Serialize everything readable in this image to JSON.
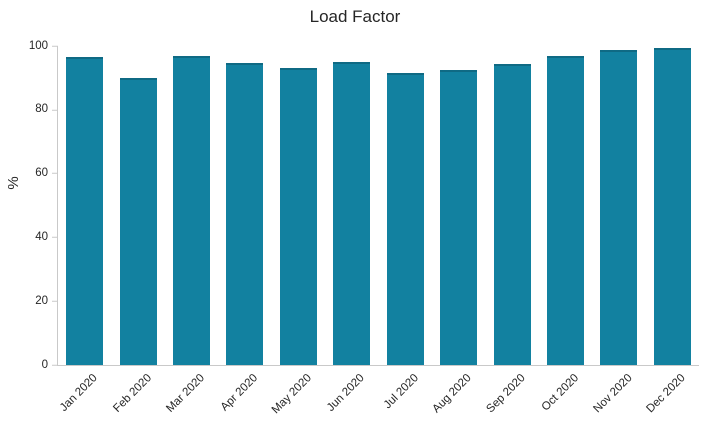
{
  "chart": {
    "title": "Load Factor",
    "y_axis_title": "%",
    "bar_color": "#1281a0",
    "bar_edge_color": "#0f6a84",
    "axis_line_color": "#c9c9c9",
    "text_color": "#262626",
    "background_color": "#ffffff"
  },
  "chart_data": {
    "type": "bar",
    "title": "Load Factor",
    "xlabel": "",
    "ylabel": "%",
    "ylim": [
      0,
      100
    ],
    "yticks": [
      0,
      20,
      40,
      60,
      80,
      100
    ],
    "grid": false,
    "legend": false,
    "categories": [
      "Jan 2020",
      "Feb 2020",
      "Mar 2020",
      "Apr 2020",
      "May 2020",
      "Jun 2020",
      "Jul 2020",
      "Aug 2020",
      "Sep 2020",
      "Oct 2020",
      "Nov 2020",
      "Dec 2020"
    ],
    "values": [
      96.4,
      89.9,
      96.9,
      94.8,
      93.2,
      95.1,
      91.5,
      92.6,
      94.4,
      97.0,
      98.7,
      99.4
    ]
  }
}
